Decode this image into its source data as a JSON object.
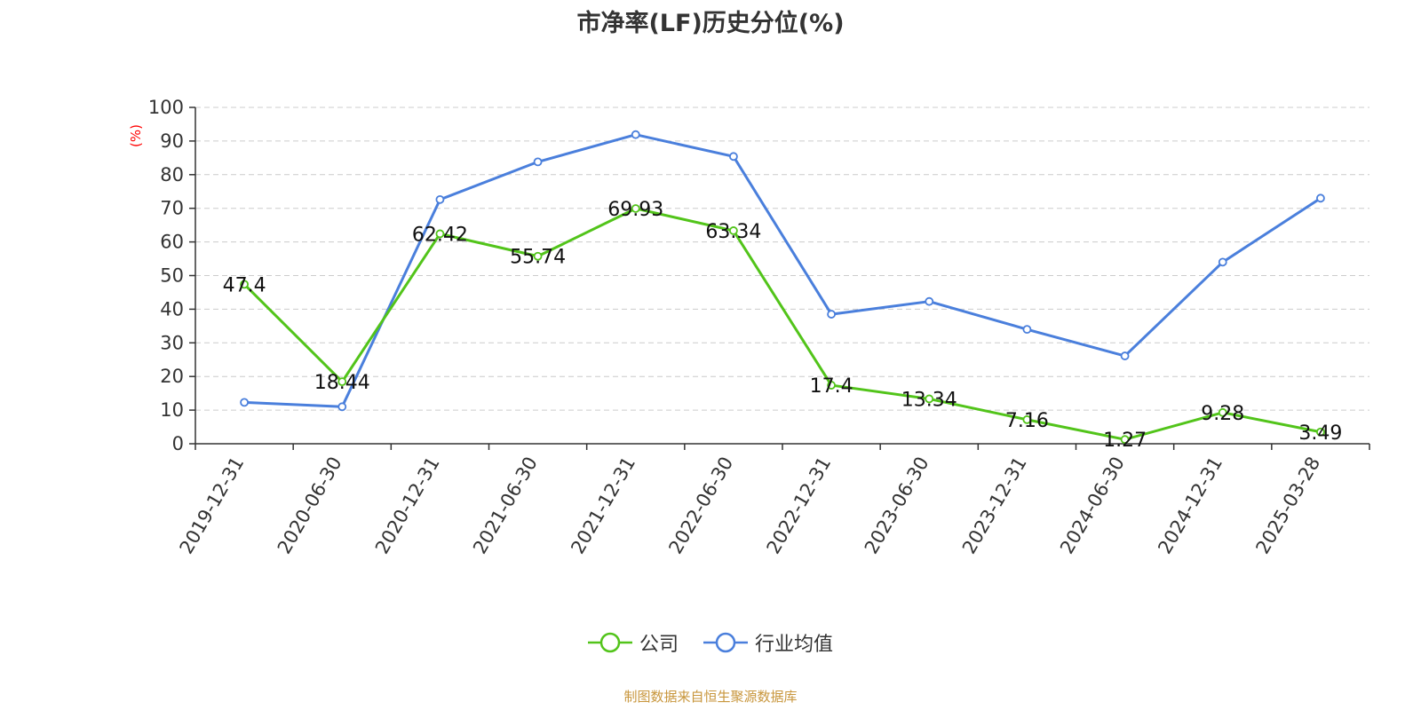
{
  "chart_data": {
    "type": "line",
    "title": "市净率(LF)历史分位(%)",
    "ylabel": "(%)",
    "xlabel": "",
    "categories": [
      "2019-12-31",
      "2020-06-30",
      "2020-12-31",
      "2021-06-30",
      "2021-12-31",
      "2022-06-30",
      "2022-12-31",
      "2023-06-30",
      "2023-12-31",
      "2024-06-30",
      "2024-12-31",
      "2025-03-28"
    ],
    "ylim": [
      0,
      100
    ],
    "yticks": [
      0,
      10,
      20,
      30,
      40,
      50,
      60,
      70,
      80,
      90,
      100
    ],
    "grid": true,
    "legend_position": "bottom",
    "series": [
      {
        "name": "公司",
        "color": "#52c41a",
        "values": [
          47.4,
          18.44,
          62.42,
          55.74,
          69.93,
          63.34,
          17.4,
          13.34,
          7.16,
          1.27,
          9.28,
          3.49
        ],
        "labels": [
          "47.4",
          "18.44",
          "62.42",
          "55.74",
          "69.93",
          "63.34",
          "17.4",
          "13.34",
          "7.16",
          "1.27",
          "9.28",
          "3.49"
        ]
      },
      {
        "name": "行业均值",
        "color": "#4a7fdc",
        "values": [
          12.3,
          11.0,
          72.6,
          83.8,
          91.9,
          85.4,
          38.5,
          42.3,
          34.0,
          26.1,
          54.0,
          73.0
        ]
      }
    ]
  },
  "footer": {
    "source": "制图数据来自恒生聚源数据库"
  }
}
